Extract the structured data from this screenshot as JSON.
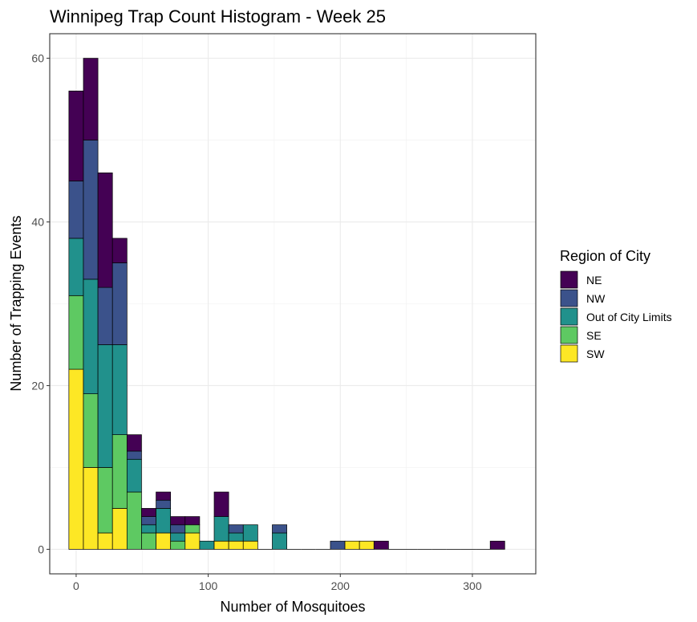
{
  "chart_data": {
    "type": "bar",
    "stacked": true,
    "title": "Winnipeg Trap Count Histogram - Week 25",
    "xlabel": "Number of Mosquitoes",
    "ylabel": "Number of Trapping Events",
    "xlim": [
      -20,
      348
    ],
    "ylim": [
      -3,
      63
    ],
    "bin_width": 11,
    "x_ticks": [
      0,
      100,
      200,
      300
    ],
    "x_tick_labels": [
      "0",
      "100",
      "200",
      "300"
    ],
    "y_ticks": [
      0,
      20,
      40,
      60
    ],
    "y_tick_labels": [
      "0",
      "20",
      "40",
      "60"
    ],
    "grid": true,
    "legend_position": "right",
    "legend_title": "Region of City",
    "categories": [
      0,
      11,
      22,
      33,
      44,
      55,
      66,
      77,
      88,
      99,
      110,
      121,
      132,
      143,
      154,
      165,
      176,
      187,
      198,
      209,
      220,
      231,
      242,
      253,
      264,
      275,
      286,
      297,
      308,
      319
    ],
    "series": [
      {
        "name": "SW",
        "color": "#FDE725",
        "values": [
          22,
          10,
          2,
          5,
          0,
          0,
          2,
          0,
          2,
          0,
          1,
          1,
          1,
          0,
          0,
          0,
          0,
          0,
          0,
          1,
          1,
          0,
          0,
          0,
          0,
          0,
          0,
          0,
          0,
          0
        ]
      },
      {
        "name": "SE",
        "color": "#5EC962",
        "values": [
          9,
          9,
          8,
          9,
          7,
          2,
          0,
          1,
          1,
          0,
          0,
          0,
          0,
          0,
          0,
          0,
          0,
          0,
          0,
          0,
          0,
          0,
          0,
          0,
          0,
          0,
          0,
          0,
          0,
          0
        ]
      },
      {
        "name": "Out of City Limits",
        "color": "#21918C",
        "values": [
          7,
          14,
          15,
          11,
          4,
          1,
          3,
          1,
          0,
          1,
          3,
          1,
          2,
          0,
          2,
          0,
          0,
          0,
          0,
          0,
          0,
          0,
          0,
          0,
          0,
          0,
          0,
          0,
          0,
          0
        ]
      },
      {
        "name": "NW",
        "color": "#3B528B",
        "values": [
          7,
          17,
          7,
          10,
          1,
          1,
          1,
          1,
          0,
          0,
          0,
          1,
          0,
          0,
          1,
          0,
          0,
          0,
          1,
          0,
          0,
          0,
          0,
          0,
          0,
          0,
          0,
          0,
          0,
          0
        ]
      },
      {
        "name": "NE",
        "color": "#440154",
        "values": [
          11,
          10,
          14,
          3,
          2,
          1,
          1,
          1,
          1,
          0,
          3,
          0,
          0,
          0,
          0,
          0,
          0,
          0,
          0,
          0,
          0,
          1,
          0,
          0,
          0,
          0,
          0,
          0,
          0,
          1
        ]
      }
    ],
    "legend_order": [
      "NE",
      "NW",
      "Out of City Limits",
      "SE",
      "SW"
    ]
  }
}
